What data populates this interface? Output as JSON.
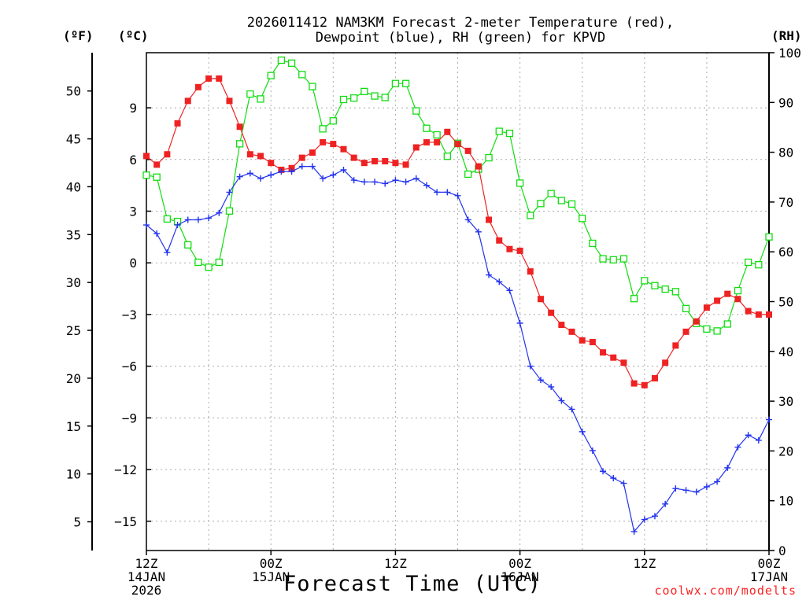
{
  "title_line1": "2026011412 NAM3KM Forecast 2-meter Temperature (red),",
  "title_line2": "Dewpoint (blue), RH (green) for KPVD",
  "unit_f": "(ºF)",
  "unit_c": "(ºC)",
  "unit_rh": "(RH)",
  "xlabel": "Forecast Time (UTC)",
  "credit": "coolwx.com/modelts",
  "colors": {
    "temp": "#ee2222",
    "dewpoint": "#2233ee",
    "rh": "#11dd11",
    "grid": "#aaaaaa"
  },
  "chart_data": {
    "type": "line",
    "x_unit": "forecast hour (0 = 12Z 14 JAN 2026)",
    "x_range": [
      0,
      60
    ],
    "ylim_c": [
      -16.7,
      12.2
    ],
    "ylim_rh": [
      0,
      100
    ],
    "ylim_f": [
      2,
      54
    ],
    "c_ticks": [
      "9",
      "6",
      "3",
      "0",
      "−3",
      "−6",
      "−9",
      "−12",
      "−15"
    ],
    "c_tick_values": [
      9,
      6,
      3,
      0,
      -3,
      -6,
      -9,
      -12,
      -15
    ],
    "f_ticks": [
      "50",
      "45",
      "40",
      "35",
      "30",
      "25",
      "20",
      "15",
      "10",
      "5"
    ],
    "f_tick_values": [
      50,
      45,
      40,
      35,
      30,
      25,
      20,
      15,
      10,
      5
    ],
    "rh_ticks": [
      "100",
      "90",
      "80",
      "70",
      "60",
      "50",
      "40",
      "30",
      "20",
      "10",
      "0"
    ],
    "rh_tick_values": [
      100,
      90,
      80,
      70,
      60,
      50,
      40,
      30,
      20,
      10,
      0
    ],
    "x_ticks": [
      {
        "hour": 0,
        "time": "12Z",
        "date": "14JAN",
        "year": "2026"
      },
      {
        "hour": 12,
        "time": "00Z",
        "date": "15JAN",
        "year": ""
      },
      {
        "hour": 24,
        "time": "12Z",
        "date": "",
        "year": ""
      },
      {
        "hour": 36,
        "time": "00Z",
        "date": "16JAN",
        "year": ""
      },
      {
        "hour": 48,
        "time": "12Z",
        "date": "",
        "year": ""
      },
      {
        "hour": 60,
        "time": "00Z",
        "date": "17JAN",
        "year": ""
      }
    ],
    "series": [
      {
        "name": "2-meter Temperature",
        "unit": "°C",
        "marker": "filled-square",
        "values": [
          6.2,
          5.7,
          6.3,
          8.1,
          9.4,
          10.2,
          10.7,
          10.7,
          9.4,
          7.9,
          6.3,
          6.2,
          5.8,
          5.4,
          5.5,
          6.1,
          6.4,
          7.0,
          6.9,
          6.6,
          6.1,
          5.8,
          5.9,
          5.9,
          5.8,
          5.7,
          6.7,
          7.0,
          7.0,
          7.6,
          6.9,
          6.5,
          5.6,
          2.5,
          1.3,
          0.8,
          0.7,
          -0.5,
          -2.1,
          -2.9,
          -3.6,
          -4.0,
          -4.5,
          -4.6,
          -5.2,
          -5.5,
          -5.8,
          -7.0,
          -7.1,
          -6.7,
          -5.8,
          -4.8,
          -4.0,
          -3.4,
          -2.6,
          -2.2,
          -1.8,
          -2.1,
          -2.8,
          -3.0,
          -3.0
        ]
      },
      {
        "name": "Dewpoint",
        "unit": "°C",
        "marker": "plus",
        "values": [
          2.2,
          1.7,
          0.6,
          2.2,
          2.5,
          2.5,
          2.6,
          2.9,
          4.1,
          5.0,
          5.2,
          4.9,
          5.1,
          5.3,
          5.3,
          5.6,
          5.6,
          4.9,
          5.1,
          5.4,
          4.8,
          4.7,
          4.7,
          4.6,
          4.8,
          4.7,
          4.9,
          4.5,
          4.1,
          4.1,
          3.9,
          2.5,
          1.8,
          -0.7,
          -1.1,
          -1.6,
          -3.5,
          -6.0,
          -6.8,
          -7.2,
          -8.0,
          -8.5,
          -9.8,
          -10.9,
          -12.1,
          -12.5,
          -12.8,
          -15.6,
          -14.9,
          -14.7,
          -14.0,
          -13.1,
          -13.2,
          -13.3,
          -13.0,
          -12.7,
          -11.9,
          -10.7,
          -10.0,
          -10.3,
          -9.1
        ]
      },
      {
        "name": "RH",
        "unit": "%",
        "marker": "open-square",
        "values": [
          75.4,
          75.0,
          66.6,
          66.1,
          61.4,
          57.9,
          56.9,
          57.9,
          68.2,
          81.7,
          91.7,
          90.7,
          95.4,
          98.5,
          97.9,
          95.6,
          93.2,
          84.7,
          86.3,
          90.6,
          90.9,
          92.2,
          91.3,
          91.0,
          93.8,
          93.8,
          88.3,
          84.8,
          83.5,
          79.2,
          81.8,
          75.6,
          76.6,
          78.9,
          84.2,
          83.8,
          73.8,
          67.3,
          69.7,
          71.7,
          70.3,
          69.6,
          66.7,
          61.7,
          58.6,
          58.4,
          58.6,
          50.6,
          54.2,
          53.2,
          52.5,
          52.0,
          48.6,
          45.6,
          44.5,
          44.1,
          45.5,
          52.2,
          57.9,
          57.4,
          63.0
        ]
      }
    ]
  }
}
